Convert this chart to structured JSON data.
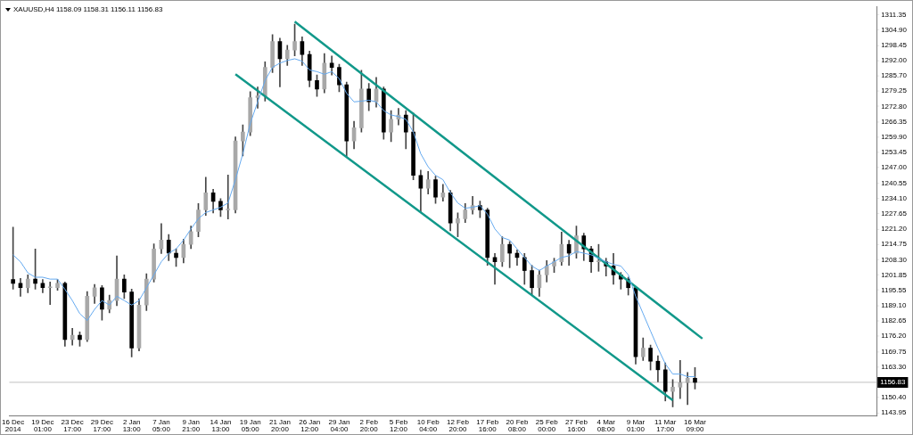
{
  "chart_data": {
    "type": "candlestick",
    "title": "XAUUSD,H4  1158.09 1158.31 1156.11 1156.83",
    "categories": [
      "16 Dec 2014",
      null,
      null,
      null,
      "19 Dec 01:00",
      null,
      null,
      null,
      "23 Dec 17:00",
      null,
      null,
      null,
      "29 Dec 17:00",
      null,
      null,
      null,
      "2 Jan 13:00",
      null,
      null,
      null,
      "7 Jan 05:00",
      null,
      null,
      null,
      "9 Jan 21:00",
      null,
      null,
      null,
      "14 Jan 13:00",
      null,
      null,
      null,
      "19 Jan 05:00",
      null,
      null,
      null,
      "21 Jan 20:00",
      null,
      null,
      null,
      "26 Jan 12:00",
      null,
      null,
      null,
      "29 Jan 04:00",
      null,
      null,
      null,
      "2 Feb 20:00",
      null,
      null,
      null,
      "5 Feb 12:00",
      null,
      null,
      null,
      "10 Feb 04:00",
      null,
      null,
      null,
      "12 Feb 20:00",
      null,
      null,
      null,
      "17 Feb 16:00",
      null,
      null,
      null,
      "20 Feb 08:00",
      null,
      null,
      null,
      "25 Feb 00:00",
      null,
      null,
      null,
      "27 Feb 16:00",
      null,
      null,
      null,
      "4 Mar 08:00",
      null,
      null,
      null,
      "9 Mar 01:00",
      null,
      null,
      null,
      "11 Mar 17:00",
      null,
      null,
      null,
      "16 Mar 09:00",
      null,
      null,
      null,
      null,
      null,
      null,
      null,
      null,
      null,
      null,
      null,
      null,
      null,
      null,
      null,
      null,
      null,
      null,
      null,
      null,
      null,
      null,
      null,
      null
    ],
    "ohlc": [
      [
        1200.0,
        1222.0,
        1196.0,
        1198.4
      ],
      [
        1198.4,
        1200.5,
        1193.0,
        1196.6
      ],
      [
        1196.6,
        1202.0,
        1194.5,
        1200.2
      ],
      [
        1200.2,
        1212.9,
        1196.0,
        1198.4
      ],
      [
        1198.4,
        1200.0,
        1194.5,
        1196.6
      ],
      [
        1196.6,
        1199.0,
        1189.5,
        1196.6
      ],
      [
        1196.6,
        1200.0,
        1195.5,
        1198.4
      ],
      [
        1198.4,
        1199.0,
        1172.0,
        1174.8
      ],
      [
        1174.8,
        1179.5,
        1172.5,
        1176.6
      ],
      [
        1176.6,
        1178.0,
        1172.0,
        1174.8
      ],
      [
        1174.8,
        1195.0,
        1174.0,
        1193.0
      ],
      [
        1193.0,
        1198.0,
        1190.0,
        1196.6
      ],
      [
        1196.6,
        1197.5,
        1183.0,
        1187.5
      ],
      [
        1187.5,
        1193.5,
        1186.0,
        1191.2
      ],
      [
        1191.2,
        1210.0,
        1189.0,
        1200.2
      ],
      [
        1200.2,
        1202.0,
        1192.0,
        1194.8
      ],
      [
        1194.8,
        1196.0,
        1167.5,
        1171.2
      ],
      [
        1171.2,
        1192.0,
        1170.0,
        1189.3
      ],
      [
        1189.3,
        1202.5,
        1187.0,
        1200.2
      ],
      [
        1200.2,
        1215.0,
        1199.0,
        1212.9
      ],
      [
        1212.9,
        1223.5,
        1211.0,
        1216.6
      ],
      [
        1216.6,
        1219.0,
        1208.0,
        1211.1
      ],
      [
        1211.1,
        1213.0,
        1205.5,
        1209.3
      ],
      [
        1209.3,
        1217.0,
        1207.0,
        1214.8
      ],
      [
        1214.8,
        1222.5,
        1213.0,
        1220.2
      ],
      [
        1220.2,
        1232.0,
        1218.0,
        1229.3
      ],
      [
        1229.3,
        1243.0,
        1227.0,
        1236.5
      ],
      [
        1236.5,
        1238.0,
        1228.0,
        1232.9
      ],
      [
        1232.9,
        1234.0,
        1226.5,
        1229.3
      ],
      [
        1229.3,
        1244.0,
        1225.5,
        1229.3
      ],
      [
        1229.3,
        1260.0,
        1228.0,
        1258.3
      ],
      [
        1258.3,
        1265.0,
        1252.0,
        1262.0
      ],
      [
        1262.0,
        1279.0,
        1260.5,
        1276.5
      ],
      [
        1276.5,
        1281.0,
        1272.0,
        1277.2
      ],
      [
        1277.2,
        1291.5,
        1275.0,
        1289.2
      ],
      [
        1289.2,
        1303.0,
        1287.0,
        1300.1
      ],
      [
        1300.1,
        1301.5,
        1281.0,
        1292.8
      ],
      [
        1292.8,
        1298.5,
        1290.0,
        1296.5
      ],
      [
        1296.5,
        1307.4,
        1294.0,
        1300.1
      ],
      [
        1300.1,
        1302.0,
        1290.0,
        1294.6
      ],
      [
        1294.6,
        1296.0,
        1281.0,
        1283.7
      ],
      [
        1283.7,
        1286.0,
        1277.0,
        1280.1
      ],
      [
        1280.1,
        1295.0,
        1278.5,
        1291.0
      ],
      [
        1291.0,
        1294.0,
        1286.0,
        1289.2
      ],
      [
        1289.2,
        1290.5,
        1279.0,
        1281.9
      ],
      [
        1281.9,
        1283.0,
        1251.8,
        1258.3
      ],
      [
        1258.3,
        1266.5,
        1255.0,
        1263.8
      ],
      [
        1263.8,
        1288.0,
        1262.0,
        1280.1
      ],
      [
        1280.1,
        1282.5,
        1271.0,
        1274.7
      ],
      [
        1274.7,
        1285.0,
        1272.5,
        1280.1
      ],
      [
        1280.1,
        1281.0,
        1259.0,
        1262.0
      ],
      [
        1262.0,
        1271.0,
        1258.0,
        1267.4
      ],
      [
        1267.4,
        1272.0,
        1265.0,
        1269.2
      ],
      [
        1269.2,
        1271.0,
        1255.0,
        1262.0
      ],
      [
        1262.0,
        1270.0,
        1242.0,
        1243.8
      ],
      [
        1243.8,
        1246.0,
        1228.5,
        1238.4
      ],
      [
        1238.4,
        1245.5,
        1236.0,
        1242.0
      ],
      [
        1242.0,
        1243.5,
        1232.0,
        1234.7
      ],
      [
        1234.7,
        1240.0,
        1233.0,
        1236.5
      ],
      [
        1236.5,
        1237.5,
        1220.5,
        1223.8
      ],
      [
        1223.8,
        1228.0,
        1218.0,
        1225.6
      ],
      [
        1225.6,
        1232.0,
        1224.0,
        1229.3
      ],
      [
        1229.3,
        1235.0,
        1227.5,
        1231.1
      ],
      [
        1231.1,
        1233.0,
        1226.0,
        1229.3
      ],
      [
        1229.3,
        1230.0,
        1206.0,
        1209.3
      ],
      [
        1209.3,
        1211.0,
        1198.0,
        1207.5
      ],
      [
        1207.5,
        1218.0,
        1205.5,
        1214.8
      ],
      [
        1214.8,
        1216.0,
        1205.0,
        1211.1
      ],
      [
        1211.1,
        1212.5,
        1206.0,
        1209.3
      ],
      [
        1209.3,
        1211.0,
        1198.0,
        1203.8
      ],
      [
        1203.8,
        1206.0,
        1193.5,
        1196.6
      ],
      [
        1196.6,
        1204.0,
        1193.0,
        1202.0
      ],
      [
        1202.0,
        1208.0,
        1199.0,
        1205.7
      ],
      [
        1205.7,
        1209.0,
        1203.0,
        1207.5
      ],
      [
        1207.5,
        1220.0,
        1206.0,
        1214.8
      ],
      [
        1214.8,
        1216.5,
        1206.0,
        1211.1
      ],
      [
        1211.1,
        1222.5,
        1209.0,
        1218.4
      ],
      [
        1218.4,
        1219.5,
        1208.0,
        1212.9
      ],
      [
        1212.9,
        1214.0,
        1203.0,
        1207.5
      ],
      [
        1207.5,
        1214.8,
        1203.5,
        1207.5
      ],
      [
        1207.5,
        1209.0,
        1201.5,
        1205.7
      ],
      [
        1205.7,
        1211.0,
        1198.0,
        1202.0
      ],
      [
        1202.0,
        1203.0,
        1196.0,
        1200.2
      ],
      [
        1200.2,
        1201.0,
        1193.5,
        1196.6
      ],
      [
        1196.6,
        1197.0,
        1164.5,
        1167.6
      ],
      [
        1167.6,
        1175.5,
        1166.0,
        1171.2
      ],
      [
        1171.2,
        1172.5,
        1162.0,
        1165.7
      ],
      [
        1165.7,
        1168.0,
        1157.0,
        1162.1
      ],
      [
        1162.1,
        1165.0,
        1149.0,
        1153.0
      ],
      [
        1153.0,
        1158.0,
        1146.5,
        1154.8
      ],
      [
        1154.8,
        1166.0,
        1150.0,
        1156.7
      ],
      [
        1156.7,
        1161.0,
        1147.5,
        1158.5
      ],
      [
        1158.5,
        1163.0,
        1154.0,
        1156.8
      ],
      null,
      null,
      null,
      null,
      null,
      null,
      null,
      null,
      null,
      null,
      null,
      null,
      null,
      null,
      null,
      null,
      null,
      null,
      null,
      null,
      null,
      null,
      null,
      null
    ],
    "series": [
      {
        "type": "line",
        "color": "#64aaf0",
        "values": [
          1210.4,
          1207.5,
          1202.8,
          1201.0,
          1201.0,
          1200.2,
          1200.2,
          1195.9,
          1191.2,
          1185.7,
          1182.8,
          1187.5,
          1191.2,
          1189.3,
          1193.0,
          1191.2,
          1189.3,
          1191.2,
          1196.6,
          1202.0,
          1207.5,
          1211.1,
          1212.9,
          1216.6,
          1221.3,
          1225.6,
          1228.2,
          1229.3,
          1230.4,
          1232.2,
          1242.0,
          1252.9,
          1265.6,
          1274.7,
          1283.7,
          1289.2,
          1291.0,
          1292.1,
          1292.8,
          1291.8,
          1288.1,
          1287.4,
          1286.3,
          1287.4,
          1284.5,
          1278.3,
          1274.7,
          1275.0,
          1275.4,
          1274.7,
          1271.0,
          1269.2,
          1268.5,
          1267.4,
          1262.0,
          1252.9,
          1247.4,
          1243.8,
          1242.0,
          1236.5,
          1232.2,
          1230.0,
          1230.4,
          1231.1,
          1227.5,
          1221.3,
          1217.7,
          1216.6,
          1212.9,
          1209.3,
          1205.7,
          1203.8,
          1205.7,
          1207.5,
          1209.3,
          1210.0,
          1211.8,
          1211.1,
          1210.4,
          1208.9,
          1207.5,
          1206.4,
          1205.7,
          1202.0,
          1193.0,
          1185.7,
          1178.4,
          1171.2,
          1164.6,
          1160.3,
          1160.3,
          1159.2,
          1159.2,
          null,
          null,
          null,
          null,
          null,
          null,
          null,
          null,
          null,
          null,
          null,
          null,
          null,
          null,
          null,
          null,
          null,
          null,
          null,
          null,
          null,
          null,
          null,
          null
        ]
      },
      {
        "type": "line",
        "color": "#11988a",
        "values": [
          null,
          null,
          null,
          null,
          null,
          null,
          null,
          null,
          null,
          null,
          null,
          null,
          null,
          null,
          null,
          null,
          null,
          null,
          null,
          null,
          null,
          null,
          null,
          null,
          null,
          null,
          null,
          null,
          null,
          null,
          null,
          null,
          null,
          null,
          null,
          null,
          null,
          null,
          1308.4,
          null,
          null,
          null,
          null,
          null,
          null,
          null,
          null,
          null,
          null,
          null,
          null,
          null,
          null,
          null,
          null,
          null,
          null,
          null,
          null,
          null,
          null,
          null,
          null,
          null,
          null,
          null,
          null,
          null,
          null,
          null,
          null,
          null,
          null,
          null,
          null,
          null,
          null,
          null,
          null,
          null,
          null,
          null,
          null,
          null,
          null,
          null,
          null,
          null,
          null,
          null,
          null,
          null,
          null,
          1175.2,
          null,
          null,
          null,
          null,
          null,
          null,
          null,
          null,
          null,
          null,
          null,
          null,
          null,
          null,
          null,
          null,
          null,
          null,
          null,
          null,
          null,
          null,
          null
        ]
      },
      {
        "type": "line",
        "color": "#11988a",
        "values": [
          null,
          null,
          null,
          null,
          null,
          null,
          null,
          null,
          null,
          null,
          null,
          null,
          null,
          null,
          null,
          null,
          null,
          null,
          null,
          null,
          null,
          null,
          null,
          null,
          null,
          null,
          null,
          null,
          null,
          null,
          1286.3,
          null,
          null,
          null,
          null,
          null,
          null,
          null,
          null,
          null,
          null,
          null,
          null,
          null,
          null,
          null,
          null,
          null,
          null,
          null,
          null,
          null,
          null,
          null,
          null,
          null,
          null,
          null,
          null,
          null,
          null,
          null,
          null,
          null,
          null,
          null,
          null,
          null,
          null,
          null,
          null,
          null,
          null,
          null,
          null,
          null,
          null,
          null,
          null,
          null,
          null,
          null,
          null,
          null,
          null,
          null,
          null,
          null,
          null,
          1149.3,
          null,
          null,
          null,
          null,
          null,
          null,
          null,
          null,
          null,
          null,
          null,
          null,
          null,
          null,
          null,
          null,
          null,
          null,
          null,
          null,
          null,
          null,
          null,
          null,
          null,
          null,
          null
        ]
      }
    ],
    "ylim": [
      1142.9,
      1314.6
    ],
    "yticks": [
      {
        "value": 1311.35,
        "label": "1311.35"
      },
      {
        "value": 1304.9,
        "label": "1304.90"
      },
      {
        "value": 1298.45,
        "label": "1298.45"
      },
      {
        "value": 1292.0,
        "label": "1292.00"
      },
      {
        "value": 1285.7,
        "label": "1285.70"
      },
      {
        "value": 1279.25,
        "label": "1279.25"
      },
      {
        "value": 1272.8,
        "label": "1272.80"
      },
      {
        "value": 1266.35,
        "label": "1266.35"
      },
      {
        "value": 1259.9,
        "label": "1259.90"
      },
      {
        "value": 1253.45,
        "label": "1253.45"
      },
      {
        "value": 1247.0,
        "label": "1247.00"
      },
      {
        "value": 1240.55,
        "label": "1240.55"
      },
      {
        "value": 1234.1,
        "label": "1234.10"
      },
      {
        "value": 1227.65,
        "label": "1227.65"
      },
      {
        "value": 1221.2,
        "label": "1221.20"
      },
      {
        "value": 1214.75,
        "label": "1214.75"
      },
      {
        "value": 1208.3,
        "label": "1208.30"
      },
      {
        "value": 1201.85,
        "label": "1201.85"
      },
      {
        "value": 1195.55,
        "label": "1195.55"
      },
      {
        "value": 1189.1,
        "label": "1189.10"
      },
      {
        "value": 1182.65,
        "label": "1182.65"
      },
      {
        "value": 1176.2,
        "label": "1176.20"
      },
      {
        "value": 1169.75,
        "label": "1169.75"
      },
      {
        "value": 1163.3,
        "label": "1163.30"
      },
      {
        "value": 1150.4,
        "label": "1150.40"
      },
      {
        "value": 1143.95,
        "label": "1143.95"
      }
    ],
    "ref_lines": [
      {
        "axis": "y",
        "value": 1156.83,
        "label": "1156.83",
        "color": "#c0c0c0"
      }
    ]
  }
}
